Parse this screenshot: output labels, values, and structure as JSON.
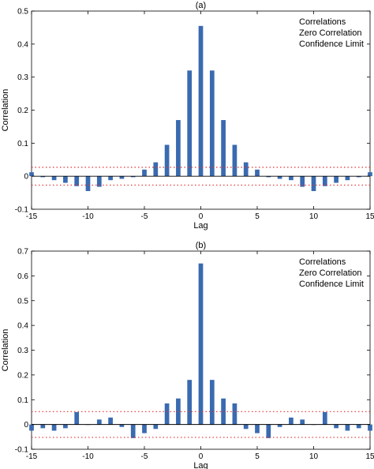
{
  "chart_data": [
    {
      "type": "bar",
      "title": "(a)",
      "xlabel": "Lag",
      "ylabel": "Correlation",
      "xlim": [
        -15,
        15
      ],
      "ylim": [
        -0.1,
        0.5
      ],
      "xticks": [
        -15,
        -10,
        -5,
        0,
        5,
        10,
        15
      ],
      "yticks": [
        -0.1,
        0,
        0.1,
        0.2,
        0.3,
        0.4,
        0.5
      ],
      "lags": [
        -15,
        -14,
        -13,
        -12,
        -11,
        -10,
        -9,
        -8,
        -7,
        -6,
        -5,
        -4,
        -3,
        -2,
        -1,
        0,
        1,
        2,
        3,
        4,
        5,
        6,
        7,
        8,
        9,
        10,
        11,
        12,
        13,
        14,
        15
      ],
      "values": [
        0.012,
        -0.003,
        -0.012,
        -0.02,
        -0.03,
        -0.045,
        -0.032,
        -0.012,
        -0.008,
        -0.003,
        0.02,
        0.042,
        0.095,
        0.17,
        0.32,
        0.455,
        0.32,
        0.17,
        0.095,
        0.042,
        0.02,
        -0.003,
        -0.008,
        -0.012,
        -0.032,
        -0.045,
        -0.03,
        -0.02,
        -0.012,
        -0.003,
        0.012
      ],
      "confidence_limit": 0.027,
      "legend": {
        "position": "top-right",
        "entries": [
          "Correlations",
          "Zero Correlation",
          "Confidence Limit"
        ]
      },
      "colors": {
        "bar": "#3a6ab0",
        "zero": "#000000",
        "confidence": "#e03030"
      }
    },
    {
      "type": "bar",
      "title": "(b)",
      "xlabel": "Lag",
      "ylabel": "Correlation",
      "xlim": [
        -15,
        15
      ],
      "ylim": [
        -0.1,
        0.7
      ],
      "xticks": [
        -15,
        -10,
        -5,
        0,
        5,
        10,
        15
      ],
      "yticks": [
        -0.1,
        0,
        0.1,
        0.2,
        0.3,
        0.4,
        0.5,
        0.6,
        0.7
      ],
      "lags": [
        -15,
        -14,
        -13,
        -12,
        -11,
        -10,
        -9,
        -8,
        -7,
        -6,
        -5,
        -4,
        -3,
        -2,
        -1,
        0,
        1,
        2,
        3,
        4,
        5,
        6,
        7,
        8,
        9,
        10,
        11,
        12,
        13,
        14,
        15
      ],
      "values": [
        -0.025,
        -0.015,
        -0.025,
        -0.015,
        0.05,
        0.0,
        0.02,
        0.028,
        -0.01,
        -0.055,
        -0.035,
        -0.018,
        0.085,
        0.105,
        0.18,
        0.65,
        0.18,
        0.105,
        0.085,
        -0.018,
        -0.035,
        -0.055,
        -0.01,
        0.028,
        0.02,
        0.0,
        0.05,
        -0.015,
        -0.025,
        -0.015,
        -0.025
      ],
      "confidence_limit": 0.052,
      "legend": {
        "position": "top-right",
        "entries": [
          "Correlations",
          "Zero Correlation",
          "Confidence Limit"
        ]
      },
      "colors": {
        "bar": "#3a6ab0",
        "zero": "#000000",
        "confidence": "#e03030"
      }
    }
  ]
}
